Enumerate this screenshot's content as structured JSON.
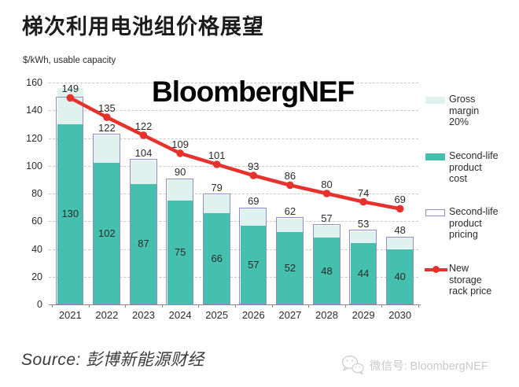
{
  "page": {
    "title": "梯次利用电池组价格展望",
    "units_label": "$/kWh, usable capacity",
    "watermark": "BloombergNEF",
    "source": "Source: 彭博新能源财经",
    "wechat": "微信号: BloombergNEF"
  },
  "colors": {
    "cost_bar": "#45bfae",
    "gross_margin": "#dff2ee",
    "pricing_outline": "#968cc3",
    "new_price_line": "#e5322d",
    "grid": "#c9c9c9",
    "axis": "#8a8a8a",
    "text": "#2b2b2b",
    "wechat_gray": "#c9c9c9"
  },
  "chart_data": {
    "type": "bar",
    "title": "梯次利用电池组价格展望",
    "ylabel": "$/kWh, usable capacity",
    "xlabel": "",
    "ylim": [
      0,
      160
    ],
    "ytick_step": 20,
    "grid": "horizontal dashed",
    "legend_position": "right",
    "categories": [
      "2021",
      "2022",
      "2023",
      "2024",
      "2025",
      "2026",
      "2027",
      "2028",
      "2029",
      "2030"
    ],
    "series": [
      {
        "name": "Second-life product cost",
        "type": "bar",
        "color": "#45bfae",
        "values": [
          130,
          102,
          87,
          75,
          66,
          57,
          52,
          48,
          44,
          40
        ]
      },
      {
        "name": "Gross margin 20%",
        "type": "bar-cap",
        "color": "#dff2ee",
        "top_values": [
          156,
          122,
          104,
          90,
          79,
          69,
          62,
          57,
          53,
          48
        ]
      },
      {
        "name": "Second-life product pricing",
        "type": "bar-outline",
        "color": "#968cc3",
        "values": [
          149,
          122,
          104,
          90,
          79,
          69,
          62,
          57,
          53,
          48
        ]
      },
      {
        "name": "New storage rack price",
        "type": "line",
        "color": "#e5322d",
        "values": [
          149,
          135,
          122,
          109,
          101,
          93,
          86,
          80,
          74,
          69
        ]
      }
    ]
  },
  "legend": {
    "items": [
      {
        "label": "Gross\nmargin\n20%",
        "swatch": "fill",
        "color": "#dff2ee"
      },
      {
        "label": "Second-life\nproduct\ncost",
        "swatch": "fill",
        "color": "#45bfae"
      },
      {
        "label": "Second-life\nproduct\npricing",
        "swatch": "outline",
        "color": "#968cc3"
      },
      {
        "label": "New\nstorage\nrack price",
        "swatch": "line",
        "color": "#e5322d"
      }
    ]
  }
}
